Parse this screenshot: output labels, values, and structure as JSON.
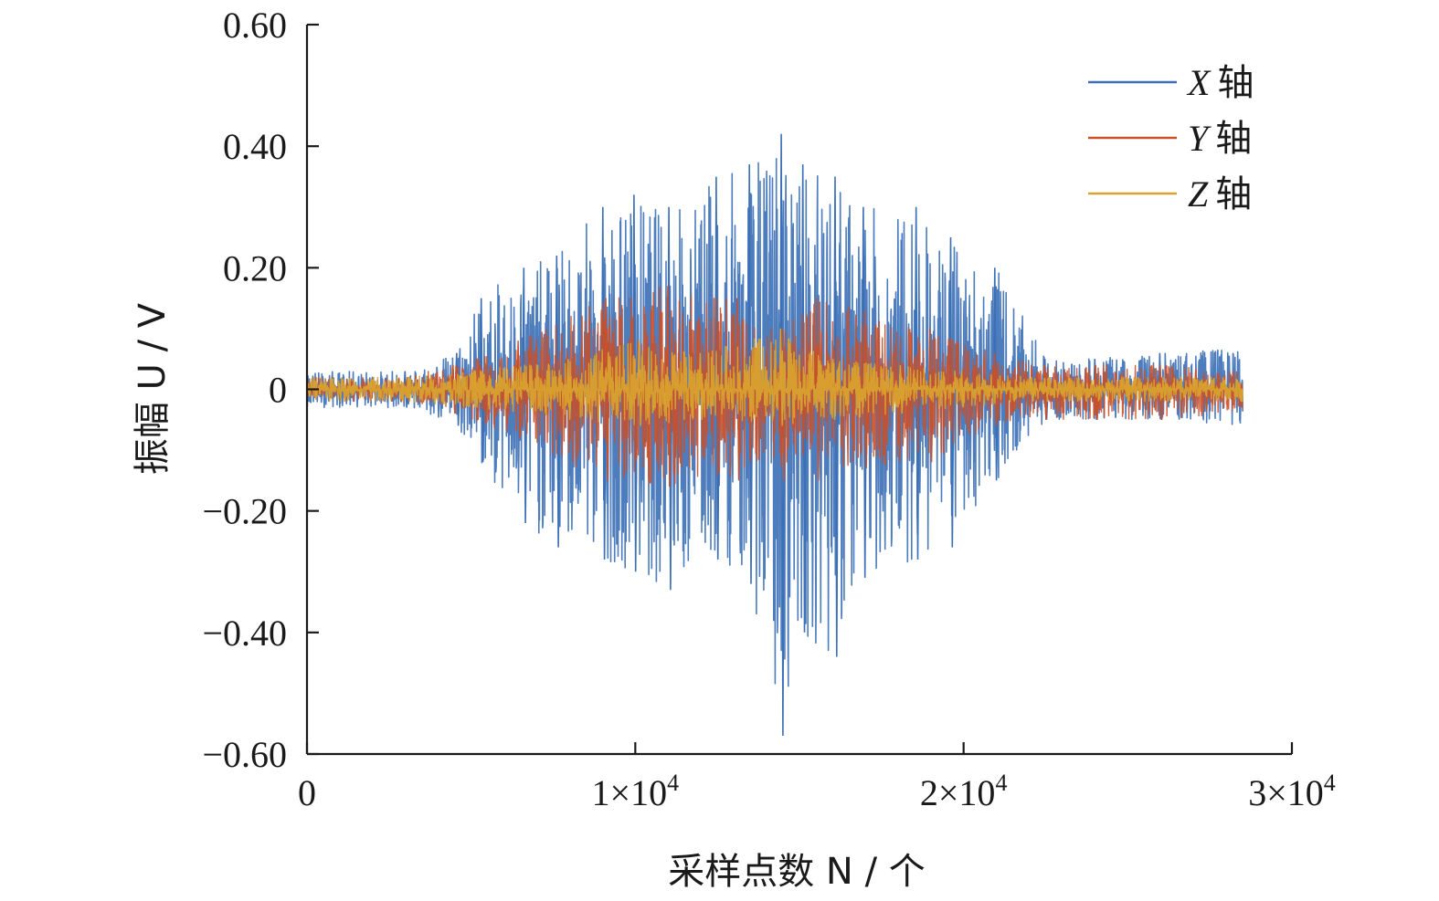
{
  "chart_data": {
    "type": "line",
    "title": "",
    "xlabel": "采样点数 N / 个",
    "ylabel": "振幅 U / V",
    "xlim": [
      0,
      30000
    ],
    "ylim": [
      -0.6,
      0.6
    ],
    "grid": false,
    "legend_position": "top-right",
    "x_ticks": [
      0,
      10000,
      20000,
      30000
    ],
    "x_tick_labels": [
      {
        "mant": "0",
        "exp": ""
      },
      {
        "mant": "1×10",
        "exp": "4"
      },
      {
        "mant": "2×10",
        "exp": "4"
      },
      {
        "mant": "3×10",
        "exp": "4"
      }
    ],
    "y_ticks": [
      0.6,
      0.4,
      0.2,
      0,
      -0.2,
      -0.4,
      -0.6
    ],
    "y_tick_labels": [
      "0.60",
      "0.40",
      "0.20",
      "0",
      "−0.20",
      "−0.40",
      "−0.60"
    ],
    "series": [
      {
        "name": "X 轴",
        "label_var": "X",
        "label_word": "轴",
        "color": "#3b6fb6",
        "envelope_x": [
          0,
          3000,
          4500,
          5200,
          6500,
          7500,
          9000,
          10000,
          11000,
          12500,
          13500,
          14400,
          15000,
          16000,
          17000,
          18500,
          19500,
          21000,
          22500,
          24000,
          26000,
          28500
        ],
        "envelope_upper": [
          0.03,
          0.03,
          0.06,
          0.15,
          0.2,
          0.22,
          0.3,
          0.32,
          0.3,
          0.35,
          0.37,
          0.42,
          0.37,
          0.35,
          0.3,
          0.3,
          0.25,
          0.2,
          0.05,
          0.05,
          0.06,
          0.07
        ],
        "envelope_lower": [
          -0.03,
          -0.03,
          -0.06,
          -0.12,
          -0.22,
          -0.26,
          -0.28,
          -0.3,
          -0.33,
          -0.28,
          -0.32,
          -0.57,
          -0.4,
          -0.44,
          -0.31,
          -0.28,
          -0.26,
          -0.15,
          -0.05,
          -0.05,
          -0.05,
          -0.06
        ]
      },
      {
        "name": "Y 轴",
        "label_var": "Y",
        "label_word": "轴",
        "color": "#c8502a",
        "envelope_x": [
          0,
          3000,
          4500,
          6500,
          9000,
          11000,
          13000,
          14400,
          15500,
          17000,
          19000,
          21000,
          22500,
          24000,
          26000,
          28500
        ],
        "envelope_upper": [
          0.02,
          0.02,
          0.04,
          0.08,
          0.15,
          0.17,
          0.15,
          0.1,
          0.15,
          0.13,
          0.1,
          0.06,
          0.04,
          0.04,
          0.04,
          0.03
        ],
        "envelope_lower": [
          -0.02,
          -0.02,
          -0.04,
          -0.08,
          -0.15,
          -0.16,
          -0.15,
          -0.15,
          -0.15,
          -0.13,
          -0.12,
          -0.06,
          -0.05,
          -0.05,
          -0.05,
          -0.04
        ]
      },
      {
        "name": "Z 轴",
        "label_var": "Z",
        "label_word": "轴",
        "color": "#d9a12e",
        "envelope_x": [
          0,
          3000,
          5000,
          8000,
          10000,
          12000,
          14400,
          16000,
          18000,
          20000,
          22000,
          25000,
          28500
        ],
        "envelope_upper": [
          0.02,
          0.02,
          0.03,
          0.05,
          0.08,
          0.06,
          0.1,
          0.05,
          0.04,
          0.03,
          0.02,
          0.02,
          0.02
        ],
        "envelope_lower": [
          -0.02,
          -0.02,
          -0.03,
          -0.05,
          -0.06,
          -0.05,
          -0.06,
          -0.05,
          -0.04,
          -0.03,
          -0.02,
          -0.02,
          -0.02
        ]
      }
    ]
  }
}
